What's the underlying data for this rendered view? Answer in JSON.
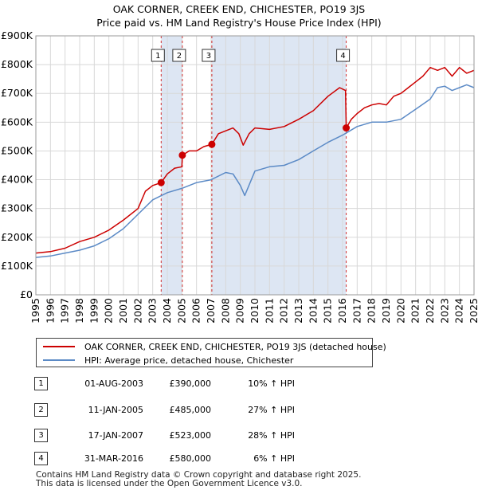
{
  "title_line1": "OAK CORNER, CREEK END, CHICHESTER, PO19 3JS",
  "title_line2": "Price paid vs. HM Land Registry's House Price Index (HPI)",
  "colors": {
    "property": "#cc0000",
    "hpi": "#5b8ac6",
    "shade": "#dde6f3",
    "grid": "#d8d8d8",
    "vline": "#cc0000"
  },
  "legend": {
    "property_label": "OAK CORNER, CREEK END, CHICHESTER, PO19 3JS (detached house)",
    "hpi_label": "HPI: Average price, detached house, Chichester"
  },
  "sales": [
    {
      "num": "1",
      "date": "01-AUG-2003",
      "price": "£390,000",
      "hpi": "10% ↑ HPI"
    },
    {
      "num": "2",
      "date": "11-JAN-2005",
      "price": "£485,000",
      "hpi": "27% ↑ HPI"
    },
    {
      "num": "3",
      "date": "17-JAN-2007",
      "price": "£523,000",
      "hpi": "28% ↑ HPI"
    },
    {
      "num": "4",
      "date": "31-MAR-2016",
      "price": "£580,000",
      "hpi": "6% ↑ HPI"
    }
  ],
  "footer": {
    "line1": "Contains HM Land Registry data © Crown copyright and database right 2025.",
    "line2": "This data is licensed under the Open Government Licence v3.0."
  },
  "chart_data": {
    "type": "line",
    "title": "OAK CORNER, CREEK END, CHICHESTER, PO19 3JS — Price paid vs. HM Land Registry's House Price Index (HPI)",
    "xlabel": "",
    "ylabel": "",
    "xlim": [
      1995,
      2025
    ],
    "ylim": [
      0,
      900000
    ],
    "x_ticks": [
      1995,
      1996,
      1997,
      1998,
      1999,
      2000,
      2001,
      2002,
      2003,
      2004,
      2005,
      2006,
      2007,
      2008,
      2009,
      2010,
      2011,
      2012,
      2013,
      2014,
      2015,
      2016,
      2017,
      2018,
      2019,
      2020,
      2021,
      2022,
      2023,
      2024,
      2025
    ],
    "y_ticks": [
      {
        "value": 0,
        "label": "£0"
      },
      {
        "value": 100000,
        "label": "£100K"
      },
      {
        "value": 200000,
        "label": "£200K"
      },
      {
        "value": 300000,
        "label": "£300K"
      },
      {
        "value": 400000,
        "label": "£400K"
      },
      {
        "value": 500000,
        "label": "£500K"
      },
      {
        "value": 600000,
        "label": "£600K"
      },
      {
        "value": 700000,
        "label": "£700K"
      },
      {
        "value": 800000,
        "label": "£800K"
      },
      {
        "value": 900000,
        "label": "£900K"
      }
    ],
    "grid": true,
    "shaded_periods": [
      [
        2003.58,
        2005.03
      ],
      [
        2007.05,
        2016.25
      ]
    ],
    "series": [
      {
        "name": "OAK CORNER, CREEK END, CHICHESTER, PO19 3JS (detached house)",
        "x": [
          1995,
          1996,
          1997,
          1998,
          1999,
          2000,
          2001,
          2002,
          2002.5,
          2003,
          2003.58,
          2004,
          2004.5,
          2005.0,
          2005.03,
          2005.5,
          2006,
          2006.5,
          2007.05,
          2007.5,
          2008,
          2008.5,
          2008.9,
          2009.2,
          2009.6,
          2010,
          2011,
          2012,
          2013,
          2014,
          2015,
          2015.8,
          2016.2,
          2016.25,
          2016.6,
          2017,
          2017.5,
          2018,
          2018.5,
          2019,
          2019.5,
          2020,
          2020.5,
          2021,
          2021.5,
          2022,
          2022.5,
          2023,
          2023.5,
          2024,
          2024.5,
          2025
        ],
        "values": [
          145000,
          150000,
          162000,
          185000,
          200000,
          225000,
          260000,
          300000,
          360000,
          380000,
          390000,
          420000,
          440000,
          445000,
          485000,
          500000,
          500000,
          515000,
          523000,
          560000,
          570000,
          580000,
          560000,
          520000,
          560000,
          580000,
          575000,
          585000,
          610000,
          640000,
          690000,
          720000,
          710000,
          580000,
          610000,
          630000,
          650000,
          660000,
          665000,
          660000,
          690000,
          700000,
          720000,
          740000,
          760000,
          790000,
          780000,
          790000,
          760000,
          790000,
          770000,
          780000
        ]
      },
      {
        "name": "HPI: Average price, detached house, Chichester",
        "x": [
          1995,
          1996,
          1997,
          1998,
          1999,
          2000,
          2001,
          2002,
          2003,
          2004,
          2005,
          2006,
          2007,
          2008,
          2008.5,
          2009,
          2009.3,
          2010,
          2011,
          2012,
          2013,
          2014,
          2015,
          2016,
          2017,
          2018,
          2019,
          2020,
          2021,
          2022,
          2022.5,
          2023,
          2023.5,
          2024,
          2024.5,
          2025
        ],
        "values": [
          130000,
          135000,
          145000,
          155000,
          170000,
          195000,
          230000,
          280000,
          330000,
          355000,
          370000,
          390000,
          400000,
          425000,
          420000,
          380000,
          345000,
          430000,
          445000,
          450000,
          470000,
          500000,
          530000,
          555000,
          585000,
          600000,
          600000,
          610000,
          645000,
          680000,
          720000,
          725000,
          710000,
          720000,
          730000,
          720000
        ]
      }
    ],
    "sale_markers": [
      {
        "label": "1",
        "x": 2003.58,
        "value": 390000
      },
      {
        "label": "2",
        "x": 2005.03,
        "value": 485000
      },
      {
        "label": "3",
        "x": 2007.05,
        "value": 523000
      },
      {
        "label": "4",
        "x": 2016.25,
        "value": 580000
      }
    ]
  }
}
